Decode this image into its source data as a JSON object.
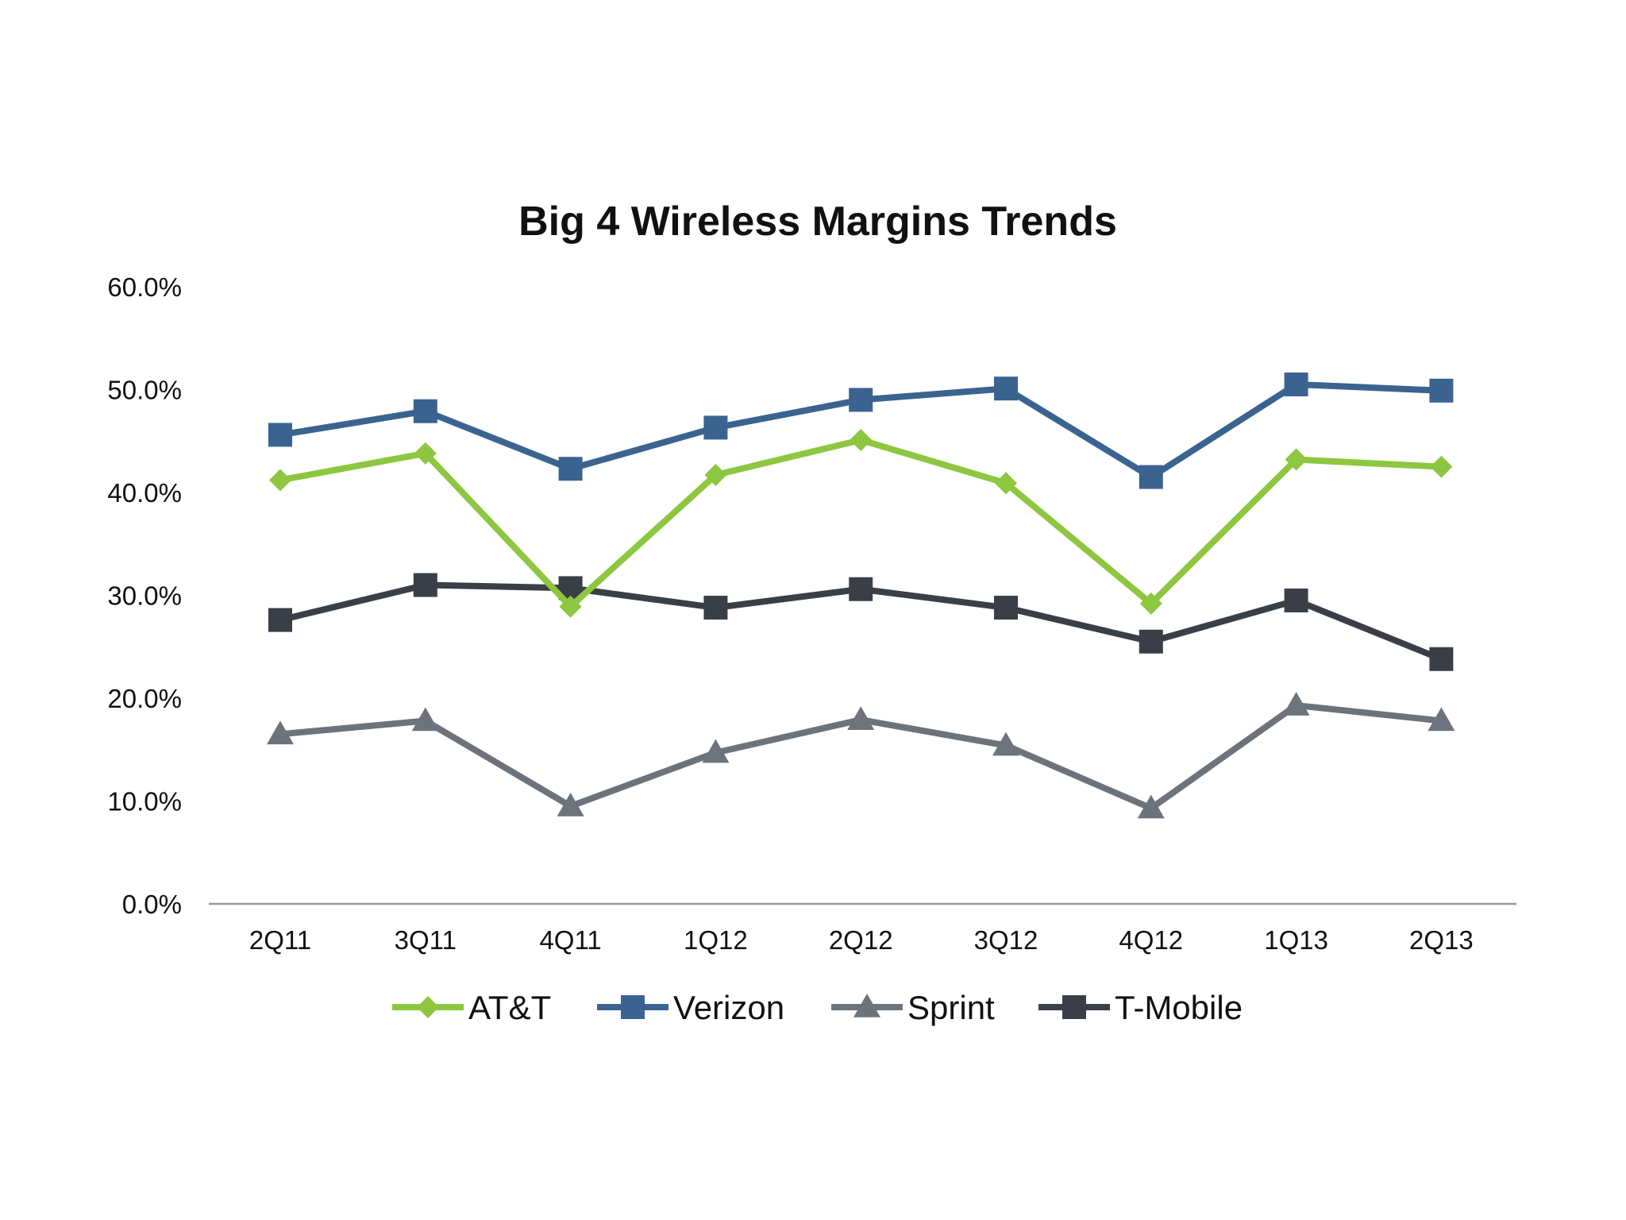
{
  "chart_data": {
    "type": "line",
    "title": "Big 4 Wireless Margins Trends",
    "xlabel": "",
    "ylabel": "",
    "categories": [
      "2Q11",
      "3Q11",
      "4Q11",
      "1Q12",
      "2Q12",
      "3Q12",
      "4Q12",
      "1Q13",
      "2Q13"
    ],
    "ylim": [
      0,
      60
    ],
    "yticks": [
      "0.0%",
      "10.0%",
      "20.0%",
      "30.0%",
      "40.0%",
      "50.0%",
      "60.0%"
    ],
    "grid": false,
    "legend_position": "bottom",
    "series": [
      {
        "name": "AT&T",
        "color": "#8dc63f",
        "marker": "diamond",
        "values": [
          41.2,
          43.8,
          28.9,
          41.7,
          45.1,
          40.9,
          29.2,
          43.2,
          42.5
        ]
      },
      {
        "name": "Verizon",
        "color": "#3b6390",
        "marker": "square",
        "values": [
          45.6,
          47.9,
          42.3,
          46.3,
          49.0,
          50.1,
          41.5,
          50.5,
          49.9
        ]
      },
      {
        "name": "Sprint",
        "color": "#6d737b",
        "marker": "triangle",
        "values": [
          16.5,
          17.8,
          9.5,
          14.7,
          17.9,
          15.4,
          9.3,
          19.3,
          17.8
        ]
      },
      {
        "name": "T-Mobile",
        "color": "#3a3f47",
        "marker": "square",
        "values": [
          27.6,
          31.0,
          30.7,
          28.8,
          30.6,
          28.8,
          25.5,
          29.5,
          23.8
        ]
      }
    ]
  }
}
